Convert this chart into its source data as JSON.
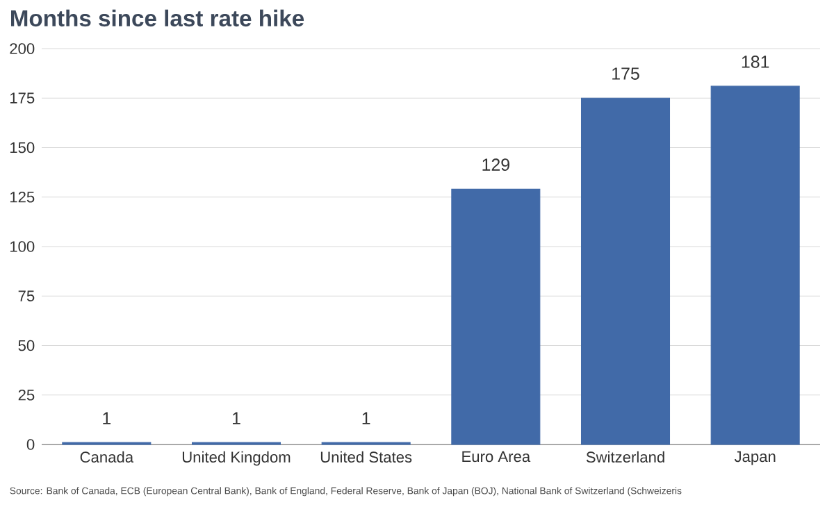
{
  "chart_data": {
    "type": "bar",
    "title": "Months since last rate hike",
    "categories": [
      "Canada",
      "United Kingdom",
      "United States",
      "Euro Area",
      "Switzerland",
      "Japan"
    ],
    "values": [
      1,
      1,
      1,
      129,
      175,
      181
    ],
    "color": "#416aa8",
    "ylim": [
      0,
      200
    ],
    "yticks": [
      0,
      25,
      50,
      75,
      100,
      125,
      150,
      175,
      200
    ],
    "grid": "y",
    "data_labels": true,
    "annotations": [
      "Source: Bank of Canada, ECB (European Central Bank), Bank of England, Federal Reserve, Bank of Japan (BOJ), National Bank of Switzerland (Schweizeris"
    ]
  }
}
